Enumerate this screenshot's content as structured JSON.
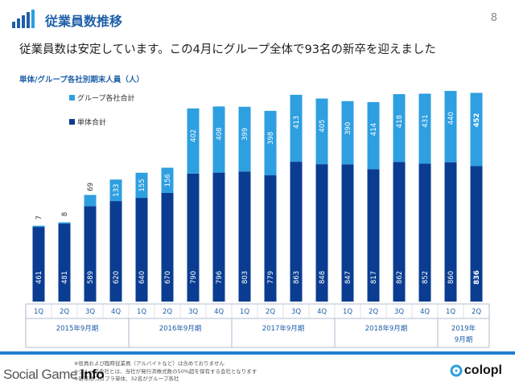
{
  "header": {
    "title": "従業員数推移",
    "page_number": "8"
  },
  "subtitle": "従業員数は安定しています。この4月にグループ全体で93名の新卒を迎えました",
  "chart_heading": "単体/グループ各社別期末人員（人）",
  "chart_data": {
    "type": "bar",
    "stacked": true,
    "categories": [
      "1Q",
      "2Q",
      "3Q",
      "4Q",
      "1Q",
      "2Q",
      "3Q",
      "4Q",
      "1Q",
      "2Q",
      "3Q",
      "4Q",
      "1Q",
      "2Q",
      "3Q",
      "4Q",
      "1Q",
      "2Q"
    ],
    "year_groups": [
      {
        "label": "2015年9月期",
        "count": 4
      },
      {
        "label": "2016年9月期",
        "count": 4
      },
      {
        "label": "2017年9月期",
        "count": 4
      },
      {
        "label": "2018年9月期",
        "count": 4
      },
      {
        "label": "2019年9月期",
        "count": 2
      }
    ],
    "series": [
      {
        "name": "単体合計",
        "color": "#0a3d91",
        "values": [
          461,
          481,
          589,
          620,
          640,
          670,
          790,
          796,
          803,
          779,
          863,
          848,
          847,
          817,
          862,
          852,
          860,
          836
        ]
      },
      {
        "name": "グループ各社合計",
        "color": "#2e9fe0",
        "values": [
          7,
          8,
          69,
          133,
          155,
          156,
          402,
          408,
          399,
          398,
          413,
          405,
          390,
          414,
          418,
          431,
          440,
          452
        ]
      }
    ],
    "highlight_last": true,
    "legend_position": "top-left",
    "ylim": [
      0,
      1350
    ]
  },
  "footnotes": [
    "※役員および臨時従業員（アルバイトなど）は含めておりません",
    "※グループ会社とは、当社が発行済株式数の50%超を保有する会社となります",
    "※新卒はコロプラ単体、32名がグループ各社"
  ],
  "watermark": {
    "main": "Social Game ",
    "bold": "Info"
  },
  "brand": {
    "name": "colopl",
    "accent": "#2e9fe0"
  }
}
